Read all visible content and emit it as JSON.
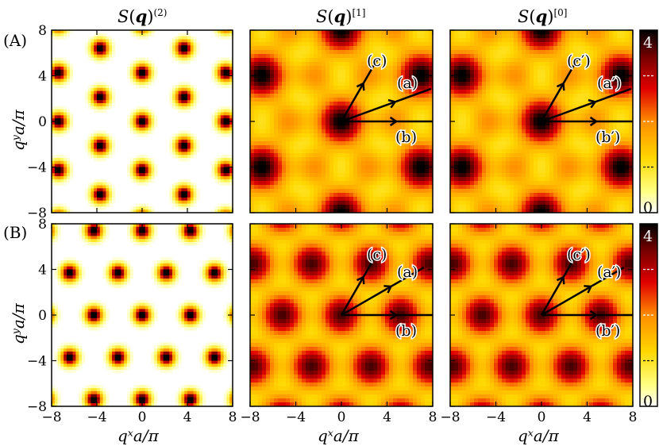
{
  "colors": {
    "cmap": [
      "#ffffff",
      "#ffff66",
      "#ffd700",
      "#ff8c00",
      "#e60000",
      "#8b0000",
      "#000000"
    ],
    "line": "#000000",
    "frame": "#000000"
  },
  "row_labels": [
    "(A)",
    "(B)"
  ],
  "titles": [
    {
      "main": "S(",
      "q": "q",
      "close": ")",
      "sup": "(2)"
    },
    {
      "main": "S(",
      "q": "q",
      "close": ")",
      "sup": "[1]"
    },
    {
      "main": "S(",
      "q": "q",
      "close": ")",
      "sup": "[0]"
    }
  ],
  "axes": {
    "xlabel": "qˣa/π",
    "ylabel": "qʸa/π",
    "xlim": [
      -8,
      8
    ],
    "ylim": [
      -8,
      8
    ],
    "xticks": [
      -8,
      -4,
      0,
      4,
      8
    ],
    "yticks": [
      -8,
      -4,
      0,
      4,
      8
    ],
    "xtick_labels": [
      "−8",
      "−4",
      "0",
      "4",
      "8"
    ],
    "ytick_labels": [
      "−8",
      "−4",
      "0",
      "4",
      "8"
    ]
  },
  "colorbar": {
    "min": 0,
    "max": 4,
    "top_label": "4",
    "bottom_label": "0",
    "dashes": [
      3,
      2,
      1
    ]
  },
  "annotations": {
    "rowA_mid": [
      {
        "label": "(c)",
        "angle": 60
      },
      {
        "label": "(a)",
        "angle": 20
      },
      {
        "label": "(b)",
        "angle": 0
      }
    ],
    "rowA_right": [
      {
        "label": "(c′)",
        "angle": 60
      },
      {
        "label": "(a′)",
        "angle": 20
      },
      {
        "label": "(b′)",
        "angle": 0
      }
    ],
    "rowB_mid": [
      {
        "label": "(c)",
        "angle": 60
      },
      {
        "label": "(a)",
        "angle": 30
      },
      {
        "label": "(b)",
        "angle": 0
      }
    ],
    "rowB_right": [
      {
        "label": "(c′)",
        "angle": 60
      },
      {
        "label": "(a′)",
        "angle": 30
      },
      {
        "label": "(b′)",
        "angle": 0
      }
    ]
  },
  "chart_data": [
    {
      "type": "heatmap",
      "panel": "A1",
      "title": "S(q)^(2)",
      "xlabel": "",
      "ylabel": "qʸa/π",
      "xlim": [
        -8,
        8
      ],
      "ylim": [
        -8,
        8
      ],
      "pattern": "sharp Bragg peaks, 6-fold",
      "vmin": 0,
      "vmax": 4
    },
    {
      "type": "heatmap",
      "panel": "A2",
      "title": "S(q)^[1]",
      "xlim": [
        -8,
        8
      ],
      "ylim": [
        -8,
        8
      ],
      "pattern": "smooth 6-fold rings",
      "vmin": 0,
      "vmax": 4
    },
    {
      "type": "heatmap",
      "panel": "A3",
      "title": "S(q)^[0]",
      "xlim": [
        -8,
        8
      ],
      "ylim": [
        -8,
        8
      ],
      "pattern": "smooth 6-fold rings",
      "vmin": 0,
      "vmax": 4
    },
    {
      "type": "heatmap",
      "panel": "B1",
      "xlabel": "qˣa/π",
      "ylabel": "qʸa/π",
      "xlim": [
        -8,
        8
      ],
      "ylim": [
        -8,
        8
      ],
      "pattern": "sharp Bragg peaks, 6-fold",
      "vmin": 0,
      "vmax": 4
    },
    {
      "type": "heatmap",
      "panel": "B2",
      "xlabel": "qˣa/π",
      "xlim": [
        -8,
        8
      ],
      "ylim": [
        -8,
        8
      ],
      "pattern": "smooth triangular lattice",
      "vmin": 0,
      "vmax": 4
    },
    {
      "type": "heatmap",
      "panel": "B3",
      "xlabel": "qˣa/π",
      "xlim": [
        -8,
        8
      ],
      "ylim": [
        -8,
        8
      ],
      "pattern": "smooth triangular lattice",
      "vmin": 0,
      "vmax": 4
    }
  ]
}
